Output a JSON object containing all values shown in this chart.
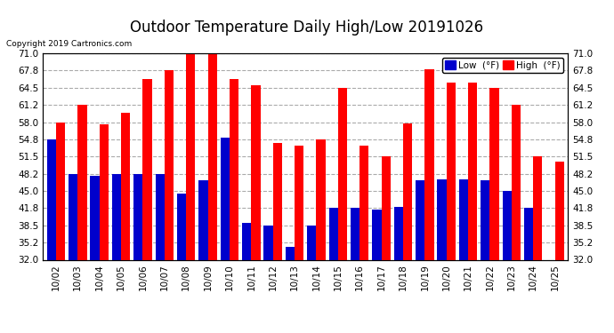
{
  "title": "Outdoor Temperature Daily High/Low 20191026",
  "copyright": "Copyright 2019 Cartronics.com",
  "categories": [
    "10/02",
    "10/03",
    "10/04",
    "10/05",
    "10/06",
    "10/07",
    "10/08",
    "10/09",
    "10/10",
    "10/11",
    "10/12",
    "10/13",
    "10/14",
    "10/15",
    "10/16",
    "10/17",
    "10/18",
    "10/19",
    "10/20",
    "10/21",
    "10/22",
    "10/23",
    "10/24",
    "10/25"
  ],
  "high": [
    58.0,
    61.2,
    57.5,
    59.7,
    66.2,
    67.8,
    71.0,
    71.0,
    66.2,
    65.0,
    54.0,
    53.5,
    54.8,
    64.5,
    53.5,
    51.5,
    57.8,
    68.0,
    65.5,
    65.5,
    64.5,
    61.2,
    51.5,
    50.5
  ],
  "low": [
    54.8,
    48.2,
    47.8,
    48.2,
    48.2,
    48.2,
    44.5,
    47.0,
    55.0,
    39.0,
    38.5,
    34.5,
    38.5,
    41.8,
    41.8,
    41.5,
    42.0,
    47.0,
    47.2,
    47.2,
    47.0,
    45.0,
    41.8,
    32.0
  ],
  "high_color": "#ff0000",
  "low_color": "#0000cc",
  "bg_color": "#ffffff",
  "plot_bg_color": "#ffffff",
  "grid_color": "#aaaaaa",
  "ylim": [
    32.0,
    71.0
  ],
  "yticks": [
    32.0,
    35.2,
    38.5,
    41.8,
    45.0,
    48.2,
    51.5,
    54.8,
    58.0,
    61.2,
    64.5,
    67.8,
    71.0
  ],
  "legend_low_label": "Low  (°F)",
  "legend_high_label": "High  (°F)",
  "title_fontsize": 12,
  "tick_fontsize": 7.5,
  "bar_width": 0.42
}
